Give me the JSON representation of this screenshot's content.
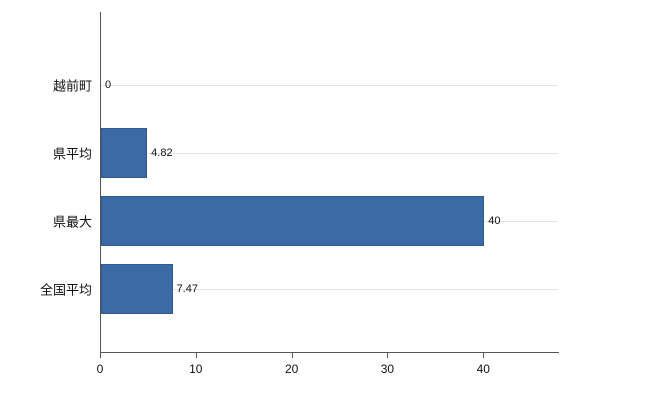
{
  "chart_data": {
    "type": "bar",
    "orientation": "horizontal",
    "categories": [
      "越前町",
      "県平均",
      "県最大",
      "全国平均"
    ],
    "values": [
      0,
      4.82,
      40,
      7.47
    ],
    "value_labels": [
      "0",
      "4.82",
      "40",
      "7.47"
    ],
    "x_ticks": [
      0,
      10,
      20,
      30,
      40
    ],
    "x_tick_labels": [
      "0",
      "10",
      "20",
      "30",
      "40"
    ],
    "xlim": [
      0,
      47.8
    ],
    "grid": "horizontal",
    "legend": "none",
    "bar_color": "#3b6aa6",
    "bar_border_color": "#2e5b92",
    "axis_color": "#555555",
    "grid_color": "#e4e4e4",
    "background": "#ffffff"
  }
}
